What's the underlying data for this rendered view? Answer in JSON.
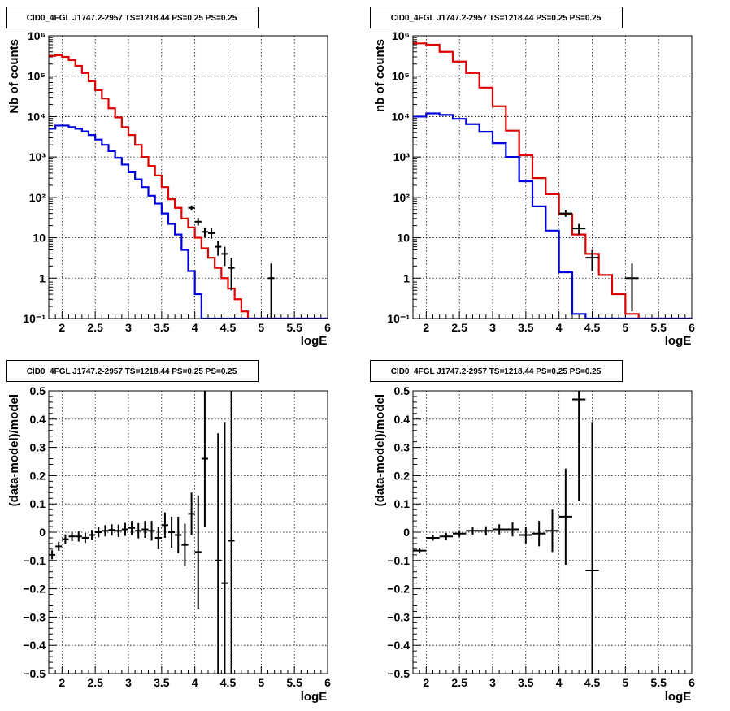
{
  "colors": {
    "model": "#dd0000",
    "component": "#0000dd",
    "data": "#000000"
  },
  "chart_data": [
    {
      "type": "line",
      "title": "CID0_4FGL J1747.2-2957 TS=1218.44 PS=0.25 PS=0.25",
      "xlabel": "logE",
      "ylabel": "Nb of counts",
      "log_y": true,
      "xlim": [
        1.8,
        6
      ],
      "ylim": [
        0.1,
        1000000
      ],
      "grid": true,
      "xticks": [
        "2",
        "2.5",
        "3",
        "3.5",
        "4",
        "4.5",
        "5",
        "5.5",
        "6"
      ],
      "yticks": [
        "10⁻¹",
        "1",
        "10",
        "10²",
        "10³",
        "10⁴",
        "10⁵",
        "10⁶"
      ],
      "bin_edges": [
        1.8,
        1.9,
        2.0,
        2.1,
        2.2,
        2.3,
        2.4,
        2.5,
        2.6,
        2.7,
        2.8,
        2.9,
        3.0,
        3.1,
        3.2,
        3.3,
        3.4,
        3.5,
        3.6,
        3.7,
        3.8,
        3.9,
        4.0,
        4.1,
        4.2,
        4.3,
        4.4,
        4.5,
        4.6,
        4.7,
        4.8,
        4.9,
        5.0,
        5.1,
        5.2,
        5.3,
        5.4,
        5.5,
        5.6,
        5.7,
        5.8,
        5.9,
        6.0
      ],
      "series": [
        {
          "style": "red_hist",
          "values": [
            320000,
            330000,
            300000,
            250000,
            180000,
            120000,
            75000,
            45000,
            28000,
            16000,
            9500,
            5500,
            3500,
            2000,
            1000,
            600,
            350,
            180,
            90,
            55,
            30,
            18,
            10,
            5.5,
            3.2,
            1.8,
            1.0,
            0.55,
            0.3,
            0.15,
            0.1,
            0.1,
            0.1,
            0.1,
            0.1,
            0.1,
            0.1,
            0.1,
            0.1,
            0.1,
            0.1,
            0.1
          ]
        },
        {
          "style": "blue_hist",
          "values": [
            5000,
            6000,
            6000,
            5500,
            5000,
            4300,
            3500,
            2700,
            2000,
            1400,
            950,
            650,
            420,
            280,
            180,
            110,
            70,
            40,
            22,
            12,
            5,
            1.5,
            0.4,
            0.1,
            0.1,
            0.1,
            0.1,
            0.1,
            0.1,
            0.1,
            0.1,
            0.1,
            0.1,
            0.1,
            0.1,
            0.1,
            0.1,
            0.1,
            0.1,
            0.1,
            0.1,
            0.1
          ]
        },
        {
          "style": "data_points",
          "points": [
            {
              "x": 3.95,
              "y": 55,
              "xerr": 0.05,
              "ylo": 47,
              "yhi": 63
            },
            {
              "x": 4.05,
              "y": 25,
              "xerr": 0.05,
              "ylo": 20,
              "yhi": 31
            },
            {
              "x": 4.15,
              "y": 14,
              "xerr": 0.05,
              "ylo": 10,
              "yhi": 18
            },
            {
              "x": 4.25,
              "y": 13,
              "xerr": 0.05,
              "ylo": 9.5,
              "yhi": 17
            },
            {
              "x": 4.35,
              "y": 6,
              "xerr": 0.05,
              "ylo": 3.6,
              "yhi": 8.5
            },
            {
              "x": 4.45,
              "y": 4,
              "xerr": 0.05,
              "ylo": 2,
              "yhi": 6
            },
            {
              "x": 4.55,
              "y": 1.8,
              "xerr": 0.05,
              "ylo": 0.5,
              "yhi": 3.2
            },
            {
              "x": 5.15,
              "y": 1,
              "xerr": 0.05,
              "ylo": 0.1,
              "yhi": 2.3
            }
          ]
        }
      ]
    },
    {
      "type": "line",
      "title": "CID0_4FGL J1747.2-2957 TS=1218.44 PS=0.25 PS=0.25",
      "xlabel": "logE",
      "ylabel": "nb of counts",
      "log_y": true,
      "xlim": [
        1.8,
        6
      ],
      "ylim": [
        0.1,
        1000000
      ],
      "grid": true,
      "xticks": [
        "2",
        "2.5",
        "3",
        "3.5",
        "4",
        "4.5",
        "5",
        "5.5",
        "6"
      ],
      "yticks": [
        "10⁻¹",
        "1",
        "10",
        "10²",
        "10³",
        "10⁴",
        "10⁵",
        "10⁶"
      ],
      "bin_edges": [
        1.8,
        2.0,
        2.2,
        2.4,
        2.6,
        2.8,
        3.0,
        3.2,
        3.4,
        3.6,
        3.8,
        4.0,
        4.2,
        4.4,
        4.6,
        4.8,
        5.0,
        5.2,
        5.4,
        5.6,
        5.8,
        6.0
      ],
      "series": [
        {
          "style": "red_hist",
          "values": [
            650000,
            600000,
            400000,
            230000,
            120000,
            52000,
            18000,
            4500,
            1100,
            300,
            120,
            38,
            12,
            4,
            1.2,
            0.4,
            0.13,
            0.1,
            0.1,
            0.1,
            0.1
          ]
        },
        {
          "style": "blue_hist",
          "values": [
            10000,
            12000,
            11000,
            8800,
            6500,
            4200,
            2200,
            1000,
            250,
            60,
            15,
            1.4,
            0.13,
            0.1,
            0.1,
            0.1,
            0.1,
            0.1,
            0.1,
            0.1,
            0.1
          ]
        },
        {
          "style": "data_points",
          "points": [
            {
              "x": 4.1,
              "y": 40,
              "xerr": 0.1,
              "ylo": 33,
              "yhi": 48
            },
            {
              "x": 4.3,
              "y": 17,
              "xerr": 0.1,
              "ylo": 12,
              "yhi": 22
            },
            {
              "x": 4.5,
              "y": 3.2,
              "xerr": 0.1,
              "ylo": 1.5,
              "yhi": 5
            },
            {
              "x": 5.1,
              "y": 1,
              "xerr": 0.1,
              "ylo": 0.15,
              "yhi": 2.3
            }
          ]
        }
      ]
    },
    {
      "type": "scatter",
      "title": "CID0_4FGL J1747.2-2957 TS=1218.44 PS=0.25 PS=0.25",
      "xlabel": "logE",
      "ylabel": "(data-model)/model",
      "log_y": false,
      "xlim": [
        1.8,
        6
      ],
      "ylim": [
        -0.5,
        0.5
      ],
      "grid": true,
      "xticks": [
        "2",
        "2.5",
        "3",
        "3.5",
        "4",
        "4.5",
        "5",
        "5.5",
        "6"
      ],
      "yticks": [
        "−0.5",
        "−0.4",
        "−0.3",
        "−0.2",
        "−0.1",
        "0",
        "0.1",
        "0.2",
        "0.3",
        "0.4",
        "0.5"
      ],
      "series": [
        {
          "style": "data_points",
          "points": [
            {
              "x": 1.85,
              "y": -0.08,
              "xerr": 0.05,
              "ylo": -0.096,
              "yhi": -0.064
            },
            {
              "x": 1.95,
              "y": -0.05,
              "xerr": 0.05,
              "ylo": -0.066,
              "yhi": -0.034
            },
            {
              "x": 2.05,
              "y": -0.025,
              "xerr": 0.05,
              "ylo": -0.042,
              "yhi": -0.008
            },
            {
              "x": 2.15,
              "y": -0.015,
              "xerr": 0.05,
              "ylo": -0.032,
              "yhi": 0.002
            },
            {
              "x": 2.25,
              "y": -0.015,
              "xerr": 0.05,
              "ylo": -0.033,
              "yhi": 0.003
            },
            {
              "x": 2.35,
              "y": -0.02,
              "xerr": 0.05,
              "ylo": -0.038,
              "yhi": -0.002
            },
            {
              "x": 2.45,
              "y": -0.01,
              "xerr": 0.05,
              "ylo": -0.028,
              "yhi": 0.008
            },
            {
              "x": 2.55,
              "y": 0,
              "xerr": 0.05,
              "ylo": -0.018,
              "yhi": 0.018
            },
            {
              "x": 2.65,
              "y": 0.005,
              "xerr": 0.05,
              "ylo": -0.015,
              "yhi": 0.025
            },
            {
              "x": 2.75,
              "y": 0.008,
              "xerr": 0.05,
              "ylo": -0.012,
              "yhi": 0.028
            },
            {
              "x": 2.85,
              "y": 0.005,
              "xerr": 0.05,
              "ylo": -0.017,
              "yhi": 0.027
            },
            {
              "x": 2.95,
              "y": 0.01,
              "xerr": 0.05,
              "ylo": -0.013,
              "yhi": 0.033
            },
            {
              "x": 3.05,
              "y": 0.015,
              "xerr": 0.05,
              "ylo": -0.01,
              "yhi": 0.04
            },
            {
              "x": 3.15,
              "y": 0.005,
              "xerr": 0.05,
              "ylo": -0.022,
              "yhi": 0.032
            },
            {
              "x": 3.25,
              "y": 0.01,
              "xerr": 0.05,
              "ylo": -0.02,
              "yhi": 0.04
            },
            {
              "x": 3.35,
              "y": 0.005,
              "xerr": 0.05,
              "ylo": -0.03,
              "yhi": 0.04
            },
            {
              "x": 3.45,
              "y": -0.02,
              "xerr": 0.05,
              "ylo": -0.06,
              "yhi": 0.02
            },
            {
              "x": 3.55,
              "y": 0.025,
              "xerr": 0.05,
              "ylo": -0.02,
              "yhi": 0.07
            },
            {
              "x": 3.65,
              "y": 0,
              "xerr": 0.05,
              "ylo": -0.055,
              "yhi": 0.055
            },
            {
              "x": 3.75,
              "y": -0.01,
              "xerr": 0.05,
              "ylo": -0.075,
              "yhi": 0.055
            },
            {
              "x": 3.85,
              "y": -0.045,
              "xerr": 0.05,
              "ylo": -0.12,
              "yhi": 0.03
            },
            {
              "x": 3.95,
              "y": 0.065,
              "xerr": 0.05,
              "ylo": -0.01,
              "yhi": 0.14
            },
            {
              "x": 4.05,
              "y": -0.07,
              "xerr": 0.05,
              "ylo": -0.27,
              "yhi": 0.13
            },
            {
              "x": 4.15,
              "y": 0.26,
              "xerr": 0.05,
              "ylo": 0.02,
              "yhi": 0.5
            },
            {
              "x": 4.35,
              "y": -0.1,
              "xerr": 0.05,
              "ylo": -0.5,
              "yhi": 0.35
            },
            {
              "x": 4.45,
              "y": -0.18,
              "xerr": 0.05,
              "ylo": -0.5,
              "yhi": 0.39
            },
            {
              "x": 4.55,
              "y": -0.03,
              "xerr": 0.05,
              "ylo": -0.5,
              "yhi": 0.5
            }
          ]
        }
      ]
    },
    {
      "type": "scatter",
      "title": "CID0_4FGL J1747.2-2957 TS=1218.44 PS=0.25 PS=0.25",
      "xlabel": "logE",
      "ylabel": "(data-model)/model",
      "log_y": false,
      "xlim": [
        1.8,
        6
      ],
      "ylim": [
        -0.5,
        0.5
      ],
      "grid": true,
      "xticks": [
        "2",
        "2.5",
        "3",
        "3.5",
        "4",
        "4.5",
        "5",
        "5.5",
        "6"
      ],
      "yticks": [
        "−0.5",
        "−0.4",
        "−0.3",
        "−0.2",
        "−0.1",
        "0",
        "0.1",
        "0.2",
        "0.3",
        "0.4",
        "0.5"
      ],
      "series": [
        {
          "style": "data_points",
          "points": [
            {
              "x": 1.9,
              "y": -0.065,
              "xerr": 0.1,
              "ylo": -0.075,
              "yhi": -0.055
            },
            {
              "x": 2.1,
              "y": -0.02,
              "xerr": 0.1,
              "ylo": -0.03,
              "yhi": -0.01
            },
            {
              "x": 2.3,
              "y": -0.015,
              "xerr": 0.1,
              "ylo": -0.027,
              "yhi": -0.003
            },
            {
              "x": 2.5,
              "y": -0.005,
              "xerr": 0.1,
              "ylo": -0.017,
              "yhi": 0.007
            },
            {
              "x": 2.7,
              "y": 0.005,
              "xerr": 0.1,
              "ylo": -0.009,
              "yhi": 0.019
            },
            {
              "x": 2.9,
              "y": 0.005,
              "xerr": 0.1,
              "ylo": -0.011,
              "yhi": 0.021
            },
            {
              "x": 3.1,
              "y": 0.01,
              "xerr": 0.1,
              "ylo": -0.008,
              "yhi": 0.028
            },
            {
              "x": 3.3,
              "y": 0.01,
              "xerr": 0.1,
              "ylo": -0.015,
              "yhi": 0.035
            },
            {
              "x": 3.5,
              "y": -0.01,
              "xerr": 0.1,
              "ylo": -0.04,
              "yhi": 0.02
            },
            {
              "x": 3.7,
              "y": -0.005,
              "xerr": 0.1,
              "ylo": -0.05,
              "yhi": 0.04
            },
            {
              "x": 3.9,
              "y": 0.005,
              "xerr": 0.1,
              "ylo": -0.07,
              "yhi": 0.08
            },
            {
              "x": 4.1,
              "y": 0.055,
              "xerr": 0.1,
              "ylo": -0.115,
              "yhi": 0.225
            },
            {
              "x": 4.3,
              "y": 0.47,
              "xerr": 0.1,
              "ylo": 0.11,
              "yhi": 0.5
            },
            {
              "x": 4.5,
              "y": -0.135,
              "xerr": 0.1,
              "ylo": -0.5,
              "yhi": 0.39
            }
          ]
        }
      ]
    }
  ]
}
